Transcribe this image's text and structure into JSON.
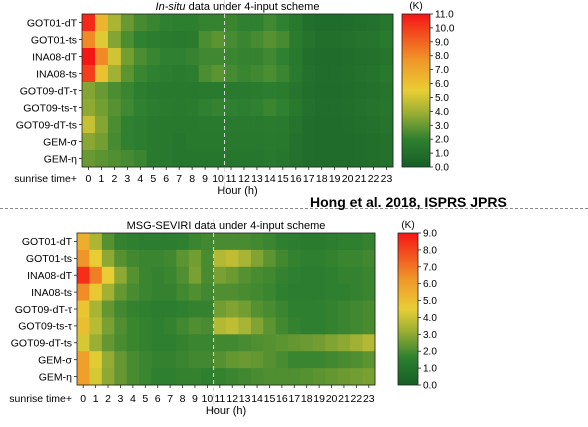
{
  "citation": "Hong et al. 2018, ISPRS JPRS",
  "chart_data": [
    {
      "type": "heatmap",
      "title_italic": "In-situ",
      "title_rest": " data under 4-input scheme",
      "xlabel": "Hour (h)",
      "ylabel": "",
      "x_ticks": [
        "sunrise time+",
        "0",
        "1",
        "2",
        "3",
        "4",
        "5",
        "6",
        "7",
        "8",
        "9",
        "10",
        "11",
        "12",
        "13",
        "14",
        "15",
        "16",
        "17",
        "18",
        "19",
        "20",
        "21",
        "22",
        "23"
      ],
      "y_labels": [
        "GOT01-dT",
        "GOT01-ts",
        "INA08-dT",
        "INA08-ts",
        "GOT09-dT-τ",
        "GOT09-ts-τ",
        "GOT09-dT-ts",
        "GEM-σ",
        "GEM-η"
      ],
      "colorbar": {
        "unit": "(K)",
        "min": 0,
        "max": 11,
        "ticks": [
          "0.0",
          "1.0",
          "2.0",
          "3.0",
          "4.0",
          "5.0",
          "6.0",
          "7.0",
          "8.0",
          "9.0",
          "10.0",
          "11.0"
        ]
      },
      "values": [
        [
          10.5,
          6.5,
          4.2,
          3.0,
          2.4,
          2.2,
          2.0,
          1.9,
          1.9,
          2.1,
          2.1,
          2.2,
          2.0,
          2.0,
          2.3,
          2.0,
          1.5,
          1.0,
          0.8,
          0.8,
          0.9,
          1.0,
          1.1,
          1.4
        ],
        [
          8.0,
          5.3,
          3.5,
          2.5,
          2.0,
          1.8,
          1.7,
          1.6,
          1.7,
          2.5,
          2.8,
          2.4,
          2.2,
          2.4,
          2.7,
          2.4,
          1.7,
          1.2,
          1.0,
          1.0,
          1.1,
          1.2,
          1.3,
          1.6
        ],
        [
          11.0,
          8.0,
          5.0,
          3.2,
          2.5,
          2.2,
          2.0,
          2.0,
          2.1,
          2.3,
          2.3,
          2.2,
          2.1,
          2.1,
          2.3,
          2.0,
          1.5,
          1.0,
          0.8,
          0.8,
          0.9,
          1.0,
          1.1,
          1.3
        ],
        [
          10.0,
          6.0,
          4.0,
          2.8,
          2.2,
          2.0,
          1.8,
          1.7,
          1.8,
          2.5,
          2.8,
          2.4,
          2.2,
          2.3,
          2.5,
          2.2,
          1.6,
          1.1,
          0.9,
          0.9,
          1.0,
          1.1,
          1.2,
          1.5
        ],
        [
          3.5,
          3.0,
          2.5,
          2.2,
          1.8,
          1.6,
          1.5,
          1.5,
          1.5,
          1.6,
          1.6,
          1.6,
          1.6,
          1.7,
          1.8,
          1.7,
          1.3,
          1.0,
          0.8,
          0.8,
          0.9,
          1.0,
          1.1,
          1.3
        ],
        [
          3.7,
          3.2,
          2.7,
          2.3,
          2.0,
          1.8,
          1.7,
          1.6,
          1.7,
          2.0,
          2.1,
          2.0,
          1.9,
          2.0,
          2.2,
          2.0,
          1.5,
          1.1,
          0.9,
          0.9,
          1.0,
          1.1,
          1.2,
          1.4
        ],
        [
          4.8,
          3.5,
          2.5,
          2.0,
          1.8,
          1.6,
          1.5,
          1.5,
          1.5,
          1.6,
          1.6,
          1.6,
          1.6,
          1.6,
          1.7,
          1.6,
          1.2,
          0.9,
          0.8,
          0.8,
          0.9,
          1.0,
          1.1,
          1.2
        ],
        [
          3.6,
          3.2,
          2.4,
          2.0,
          1.8,
          1.6,
          1.5,
          1.4,
          1.5,
          1.5,
          1.5,
          1.5,
          1.5,
          1.5,
          1.6,
          1.5,
          1.1,
          0.9,
          0.8,
          0.8,
          0.8,
          0.9,
          1.0,
          1.1
        ],
        [
          3.0,
          2.8,
          2.6,
          2.4,
          2.2,
          1.6,
          1.5,
          1.4,
          1.4,
          1.4,
          1.4,
          1.4,
          1.4,
          1.4,
          1.5,
          1.4,
          1.1,
          0.9,
          0.8,
          0.8,
          0.8,
          0.9,
          1.0,
          1.1
        ]
      ]
    },
    {
      "type": "heatmap",
      "title_italic": "",
      "title_rest": "MSG-SEVIRI data under 4-input scheme",
      "xlabel": "Hour (h)",
      "ylabel": "",
      "x_ticks": [
        "sunrise time+",
        "0",
        "1",
        "2",
        "3",
        "4",
        "5",
        "6",
        "7",
        "8",
        "9",
        "10",
        "11",
        "12",
        "13",
        "14",
        "15",
        "16",
        "17",
        "18",
        "19",
        "20",
        "21",
        "22",
        "23"
      ],
      "y_labels": [
        "GOT01-dT",
        "GOT01-ts",
        "INA08-dT",
        "INA08-ts",
        "GOT09-dT-τ",
        "GOT09-ts-τ",
        "GOT09-dT-ts",
        "GEM-σ",
        "GEM-η"
      ],
      "colorbar": {
        "unit": "(K)",
        "min": 0,
        "max": 9,
        "ticks": [
          "0.0",
          "1.0",
          "2.0",
          "3.0",
          "4.0",
          "5.0",
          "6.0",
          "7.0",
          "8.0",
          "9.0"
        ]
      },
      "values": [
        [
          5.5,
          3.5,
          2.2,
          1.7,
          1.6,
          1.5,
          1.5,
          1.5,
          1.6,
          1.8,
          1.9,
          2.0,
          2.0,
          2.0,
          1.9,
          1.8,
          1.6,
          1.5,
          1.4,
          1.4,
          1.5,
          1.6,
          1.6,
          1.7
        ],
        [
          6.3,
          4.5,
          3.0,
          2.2,
          1.9,
          1.8,
          1.8,
          1.9,
          2.3,
          2.6,
          2.0,
          3.6,
          3.8,
          3.4,
          2.8,
          2.3,
          1.9,
          1.7,
          1.6,
          1.6,
          1.7,
          1.8,
          1.8,
          1.9
        ],
        [
          8.5,
          6.8,
          4.5,
          3.0,
          2.2,
          1.8,
          1.7,
          1.8,
          2.1,
          2.7,
          2.0,
          2.7,
          2.5,
          2.2,
          2.0,
          1.9,
          1.7,
          1.6,
          1.5,
          1.5,
          1.6,
          1.7,
          1.7,
          1.8
        ],
        [
          6.5,
          4.7,
          3.3,
          2.4,
          2.0,
          1.8,
          1.7,
          1.7,
          1.9,
          2.1,
          1.9,
          2.1,
          2.1,
          2.0,
          1.9,
          1.8,
          1.6,
          1.5,
          1.5,
          1.5,
          1.6,
          1.6,
          1.7,
          1.8
        ],
        [
          4.8,
          3.4,
          2.4,
          1.9,
          1.7,
          1.6,
          1.5,
          1.5,
          1.6,
          1.7,
          1.7,
          2.6,
          2.8,
          2.6,
          2.2,
          2.0,
          1.8,
          1.6,
          1.6,
          1.6,
          1.7,
          1.8,
          1.9,
          2.0
        ],
        [
          5.0,
          3.7,
          2.7,
          2.1,
          1.8,
          1.7,
          1.6,
          1.7,
          1.9,
          2.1,
          2.0,
          3.6,
          3.8,
          3.4,
          2.8,
          2.3,
          1.9,
          1.7,
          1.6,
          1.6,
          1.7,
          1.8,
          1.9,
          2.0
        ],
        [
          4.2,
          3.2,
          2.4,
          2.0,
          1.8,
          1.7,
          1.6,
          1.6,
          1.7,
          1.8,
          1.8,
          1.9,
          1.9,
          2.0,
          2.1,
          2.2,
          2.3,
          2.4,
          2.5,
          2.6,
          2.8,
          3.0,
          3.3,
          3.6
        ],
        [
          6.0,
          4.4,
          3.1,
          2.4,
          2.0,
          1.8,
          1.7,
          1.7,
          1.8,
          1.9,
          1.9,
          2.2,
          2.4,
          2.5,
          2.4,
          2.2,
          2.0,
          1.8,
          1.8,
          1.8,
          1.9,
          2.0,
          2.1,
          2.3
        ],
        [
          6.0,
          4.2,
          3.0,
          2.4,
          2.0,
          1.8,
          1.6,
          1.6,
          1.7,
          1.7,
          1.6,
          1.7,
          1.8,
          1.9,
          2.0,
          2.1,
          2.1,
          2.1,
          2.2,
          2.3,
          2.4,
          2.5,
          2.6,
          2.7
        ]
      ]
    }
  ]
}
